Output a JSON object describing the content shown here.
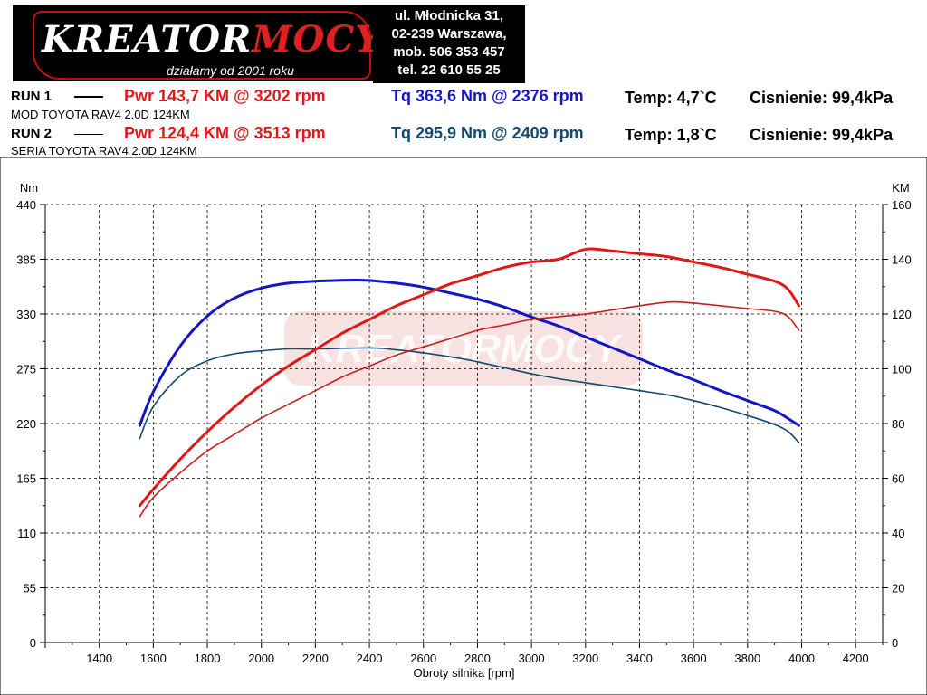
{
  "header": {
    "brand_main": "KREATOR",
    "brand_accent": "MOCY",
    "tagline": "działamy od 2001 roku",
    "address_lines": [
      "ul. Młodnicka 31,",
      "02-239  Warszawa,",
      "mob.  506 353 457",
      "tel.  22 610 55 25"
    ]
  },
  "runs": [
    {
      "label": "RUN 1",
      "pwr": "Pwr  143,7 KM @ 3202 rpm",
      "tq": "Tq 363,6 Nm @ 2376 rpm",
      "temp": "Temp: 4,7`C",
      "pressure": "Cisnienie: 99,4kPa",
      "description": "MOD TOYOTA RAV4 2.0D 124KM"
    },
    {
      "label": "RUN 2",
      "pwr": "Pwr  124,4 KM @ 3513 rpm",
      "tq": "Tq 295,9 Nm @ 2409 rpm",
      "temp": "Temp: 1,8`C",
      "pressure": "Cisnienie: 99,4kPa",
      "description": "SERIA TOYOTA RAV4 2.0D 124KM"
    }
  ],
  "colors": {
    "run1_power": "#e01818",
    "run2_power": "#c81e1e",
    "run1_torque": "#1515c8",
    "run2_torque": "#144a6e",
    "pwr_text": "#e01818",
    "tq_run1_text": "#1515c8",
    "tq_run2_text": "#144a6e",
    "watermark": "#f2c9c9"
  },
  "chart_data": {
    "type": "line",
    "xlabel": "Obroty silnika [rpm]",
    "ylabel_left": "Nm",
    "ylabel_right": "KM",
    "xlim": [
      1200,
      4300
    ],
    "ylim_left": [
      0,
      440
    ],
    "ylim_right": [
      0,
      160
    ],
    "x_ticks": [
      1400,
      1600,
      1800,
      2000,
      2200,
      2400,
      2600,
      2800,
      3000,
      3200,
      3400,
      3600,
      3800,
      4000,
      4200
    ],
    "y_ticks_left": [
      0,
      55,
      110,
      165,
      220,
      275,
      330,
      385,
      440
    ],
    "y_ticks_right": [
      0,
      20,
      40,
      60,
      80,
      100,
      120,
      140,
      160
    ],
    "grid": true,
    "watermark": "KREATORMOCY",
    "series": [
      {
        "name": "RUN 1 Tq",
        "axis": "left",
        "color_key": "run1_torque",
        "points": [
          [
            1550,
            218
          ],
          [
            1600,
            252
          ],
          [
            1700,
            298
          ],
          [
            1800,
            328
          ],
          [
            1900,
            346
          ],
          [
            2000,
            356
          ],
          [
            2100,
            361
          ],
          [
            2200,
            363
          ],
          [
            2376,
            364
          ],
          [
            2500,
            361
          ],
          [
            2600,
            357
          ],
          [
            2700,
            351
          ],
          [
            2800,
            345
          ],
          [
            2900,
            337
          ],
          [
            3000,
            327
          ],
          [
            3100,
            318
          ],
          [
            3200,
            307
          ],
          [
            3300,
            296
          ],
          [
            3400,
            285
          ],
          [
            3500,
            274
          ],
          [
            3600,
            264
          ],
          [
            3700,
            253
          ],
          [
            3800,
            243
          ],
          [
            3900,
            233
          ],
          [
            3950,
            225
          ],
          [
            3990,
            218
          ]
        ]
      },
      {
        "name": "RUN 2 Tq",
        "axis": "left",
        "color_key": "run2_torque",
        "points": [
          [
            1550,
            205
          ],
          [
            1600,
            237
          ],
          [
            1700,
            268
          ],
          [
            1800,
            283
          ],
          [
            1900,
            290
          ],
          [
            2000,
            293
          ],
          [
            2100,
            295
          ],
          [
            2200,
            295
          ],
          [
            2409,
            296
          ],
          [
            2500,
            294
          ],
          [
            2600,
            291
          ],
          [
            2700,
            287
          ],
          [
            2800,
            282
          ],
          [
            2900,
            276
          ],
          [
            3000,
            270
          ],
          [
            3100,
            265
          ],
          [
            3200,
            261
          ],
          [
            3300,
            257
          ],
          [
            3400,
            253
          ],
          [
            3500,
            249
          ],
          [
            3600,
            243
          ],
          [
            3700,
            236
          ],
          [
            3800,
            228
          ],
          [
            3900,
            219
          ],
          [
            3950,
            212
          ],
          [
            3990,
            201
          ]
        ]
      },
      {
        "name": "RUN 1 Pwr",
        "axis": "right",
        "color_key": "run1_power",
        "points": [
          [
            1550,
            50
          ],
          [
            1600,
            56
          ],
          [
            1700,
            67
          ],
          [
            1800,
            77
          ],
          [
            1900,
            86
          ],
          [
            2000,
            94
          ],
          [
            2100,
            101
          ],
          [
            2200,
            107
          ],
          [
            2300,
            113
          ],
          [
            2400,
            118
          ],
          [
            2500,
            123
          ],
          [
            2600,
            127
          ],
          [
            2700,
            131
          ],
          [
            2800,
            134
          ],
          [
            2900,
            137
          ],
          [
            3000,
            139
          ],
          [
            3100,
            140
          ],
          [
            3202,
            143.7
          ],
          [
            3300,
            143
          ],
          [
            3400,
            142
          ],
          [
            3500,
            141
          ],
          [
            3600,
            139
          ],
          [
            3700,
            137
          ],
          [
            3800,
            134.5
          ],
          [
            3900,
            132
          ],
          [
            3950,
            129
          ],
          [
            3990,
            123
          ]
        ]
      },
      {
        "name": "RUN 2 Pwr",
        "axis": "right",
        "color_key": "run2_power",
        "points": [
          [
            1550,
            46
          ],
          [
            1600,
            53
          ],
          [
            1700,
            62
          ],
          [
            1800,
            70
          ],
          [
            1900,
            76
          ],
          [
            2000,
            82
          ],
          [
            2100,
            87
          ],
          [
            2200,
            92
          ],
          [
            2300,
            97
          ],
          [
            2400,
            101
          ],
          [
            2500,
            105
          ],
          [
            2600,
            108
          ],
          [
            2700,
            111
          ],
          [
            2800,
            114
          ],
          [
            2900,
            116
          ],
          [
            3000,
            118
          ],
          [
            3100,
            119
          ],
          [
            3200,
            120
          ],
          [
            3300,
            121.5
          ],
          [
            3400,
            123
          ],
          [
            3513,
            124.4
          ],
          [
            3600,
            124
          ],
          [
            3700,
            123
          ],
          [
            3800,
            122
          ],
          [
            3900,
            121
          ],
          [
            3950,
            119
          ],
          [
            3990,
            114
          ]
        ]
      }
    ]
  }
}
